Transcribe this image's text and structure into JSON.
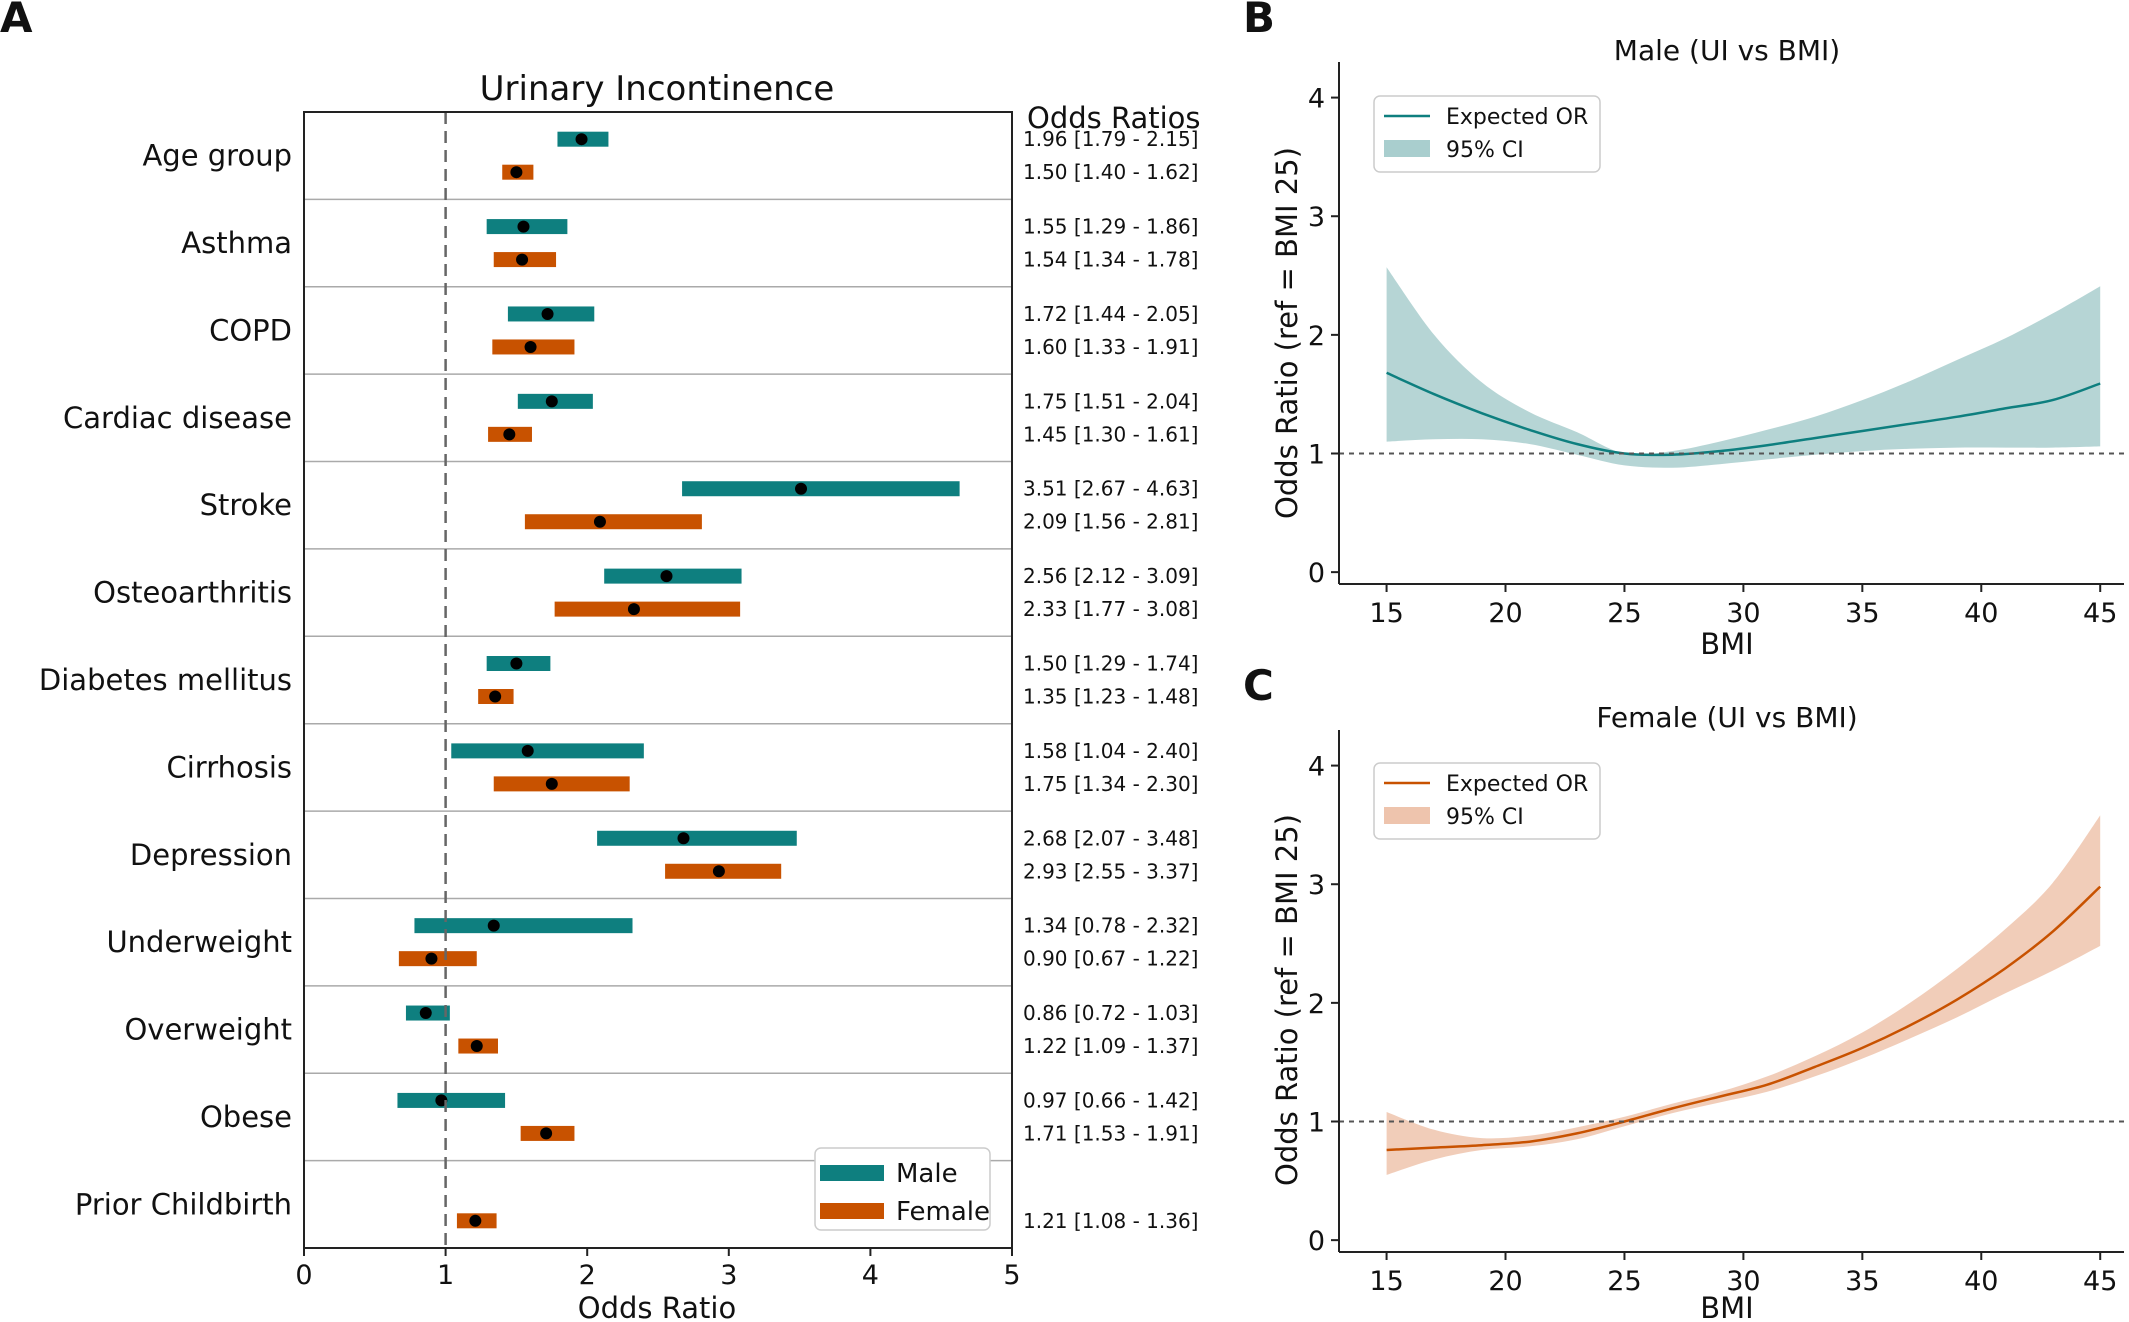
{
  "colors": {
    "male": "#0e7f7f",
    "female": "#c85200",
    "male_band": "#a9cece",
    "female_band": "#eec4ad",
    "point": "#000000"
  },
  "panels": {
    "a": "A",
    "b": "B",
    "c": "C"
  },
  "chart_data": [
    {
      "type": "forest",
      "title": "Urinary Incontinence",
      "xlabel": "Odds Ratio",
      "or_header": "Odds Ratios",
      "xlim": [
        0,
        5
      ],
      "xticks": [
        "0",
        "1",
        "2",
        "3",
        "4",
        "5"
      ],
      "reference_line": 1,
      "legend": {
        "male": "Male",
        "female": "Female",
        "placement": "bottom-right"
      },
      "rows": [
        {
          "label": "Age group",
          "male": {
            "or": 1.96,
            "lo": 1.79,
            "hi": 2.15,
            "text": "1.96 [1.79 - 2.15]"
          },
          "female": {
            "or": 1.5,
            "lo": 1.4,
            "hi": 1.62,
            "text": "1.50 [1.40 - 1.62]"
          }
        },
        {
          "label": "Asthma",
          "male": {
            "or": 1.55,
            "lo": 1.29,
            "hi": 1.86,
            "text": "1.55 [1.29 - 1.86]"
          },
          "female": {
            "or": 1.54,
            "lo": 1.34,
            "hi": 1.78,
            "text": "1.54 [1.34 - 1.78]"
          }
        },
        {
          "label": "COPD",
          "male": {
            "or": 1.72,
            "lo": 1.44,
            "hi": 2.05,
            "text": "1.72 [1.44 - 2.05]"
          },
          "female": {
            "or": 1.6,
            "lo": 1.33,
            "hi": 1.91,
            "text": "1.60 [1.33 - 1.91]"
          }
        },
        {
          "label": "Cardiac disease",
          "male": {
            "or": 1.75,
            "lo": 1.51,
            "hi": 2.04,
            "text": "1.75 [1.51 - 2.04]"
          },
          "female": {
            "or": 1.45,
            "lo": 1.3,
            "hi": 1.61,
            "text": "1.45 [1.30 - 1.61]"
          }
        },
        {
          "label": "Stroke",
          "male": {
            "or": 3.51,
            "lo": 2.67,
            "hi": 4.63,
            "text": "3.51 [2.67 - 4.63]"
          },
          "female": {
            "or": 2.09,
            "lo": 1.56,
            "hi": 2.81,
            "text": "2.09 [1.56 - 2.81]"
          }
        },
        {
          "label": "Osteoarthritis",
          "male": {
            "or": 2.56,
            "lo": 2.12,
            "hi": 3.09,
            "text": "2.56 [2.12 - 3.09]"
          },
          "female": {
            "or": 2.33,
            "lo": 1.77,
            "hi": 3.08,
            "text": "2.33 [1.77 - 3.08]"
          }
        },
        {
          "label": "Diabetes mellitus",
          "male": {
            "or": 1.5,
            "lo": 1.29,
            "hi": 1.74,
            "text": "1.50 [1.29 - 1.74]"
          },
          "female": {
            "or": 1.35,
            "lo": 1.23,
            "hi": 1.48,
            "text": "1.35 [1.23 - 1.48]"
          }
        },
        {
          "label": "Cirrhosis",
          "male": {
            "or": 1.58,
            "lo": 1.04,
            "hi": 2.4,
            "text": "1.58 [1.04 - 2.40]"
          },
          "female": {
            "or": 1.75,
            "lo": 1.34,
            "hi": 2.3,
            "text": "1.75 [1.34 - 2.30]"
          }
        },
        {
          "label": "Depression",
          "male": {
            "or": 2.68,
            "lo": 2.07,
            "hi": 3.48,
            "text": "2.68 [2.07 - 3.48]"
          },
          "female": {
            "or": 2.93,
            "lo": 2.55,
            "hi": 3.37,
            "text": "2.93 [2.55 - 3.37]"
          }
        },
        {
          "label": "Underweight",
          "male": {
            "or": 1.34,
            "lo": 0.78,
            "hi": 2.32,
            "text": "1.34 [0.78 - 2.32]"
          },
          "female": {
            "or": 0.9,
            "lo": 0.67,
            "hi": 1.22,
            "text": "0.90 [0.67 - 1.22]"
          }
        },
        {
          "label": "Overweight",
          "male": {
            "or": 0.86,
            "lo": 0.72,
            "hi": 1.03,
            "text": "0.86 [0.72 - 1.03]"
          },
          "female": {
            "or": 1.22,
            "lo": 1.09,
            "hi": 1.37,
            "text": "1.22 [1.09 - 1.37]"
          }
        },
        {
          "label": "Obese",
          "male": {
            "or": 0.97,
            "lo": 0.66,
            "hi": 1.42,
            "text": "0.97 [0.66 - 1.42]"
          },
          "female": {
            "or": 1.71,
            "lo": 1.53,
            "hi": 1.91,
            "text": "1.71 [1.53 - 1.91]"
          }
        },
        {
          "label": "Prior Childbirth",
          "male": null,
          "female": {
            "or": 1.21,
            "lo": 1.08,
            "hi": 1.36,
            "text": "1.21 [1.08 - 1.36]"
          }
        }
      ]
    },
    {
      "type": "line",
      "title": "Male (UI vs BMI)",
      "xlabel": "BMI",
      "ylabel": "Odds Ratio (ref = BMI 25)",
      "xlim": [
        13,
        46
      ],
      "ylim": [
        -0.1,
        4.3
      ],
      "xticks": [
        "15",
        "20",
        "25",
        "30",
        "35",
        "40",
        "45"
      ],
      "yticks": [
        "0",
        "1",
        "2",
        "3",
        "4"
      ],
      "reference_line": 1,
      "legend": {
        "line": "Expected OR",
        "band": "95% CI",
        "placement": "top-left"
      },
      "x": [
        15,
        17,
        19,
        21,
        23,
        25,
        27,
        29,
        31,
        33,
        35,
        37,
        39,
        41,
        43,
        45
      ],
      "or": [
        1.68,
        1.5,
        1.34,
        1.2,
        1.08,
        1.0,
        0.99,
        1.02,
        1.07,
        1.13,
        1.19,
        1.25,
        1.31,
        1.38,
        1.45,
        1.59
      ],
      "lo": [
        1.1,
        1.12,
        1.12,
        1.08,
        0.99,
        0.9,
        0.88,
        0.91,
        0.95,
        0.99,
        1.02,
        1.04,
        1.05,
        1.05,
        1.05,
        1.06
      ],
      "hi": [
        2.57,
        2.0,
        1.6,
        1.35,
        1.18,
        1.0,
        1.02,
        1.1,
        1.2,
        1.31,
        1.45,
        1.61,
        1.79,
        1.97,
        2.18,
        2.41
      ]
    },
    {
      "type": "line",
      "title": "Female (UI vs BMI)",
      "xlabel": "BMI",
      "ylabel": "Odds Ratio (ref = BMI 25)",
      "xlim": [
        13,
        46
      ],
      "ylim": [
        -0.1,
        4.3
      ],
      "xticks": [
        "15",
        "20",
        "25",
        "30",
        "35",
        "40",
        "45"
      ],
      "yticks": [
        "0",
        "1",
        "2",
        "3",
        "4"
      ],
      "reference_line": 1,
      "legend": {
        "line": "Expected OR",
        "band": "95% CI",
        "placement": "top-left"
      },
      "x": [
        15,
        17,
        19,
        21,
        23,
        25,
        27,
        29,
        31,
        33,
        35,
        37,
        39,
        41,
        43,
        45
      ],
      "or": [
        0.76,
        0.78,
        0.8,
        0.83,
        0.9,
        1.0,
        1.11,
        1.21,
        1.31,
        1.46,
        1.62,
        1.81,
        2.03,
        2.29,
        2.6,
        2.98
      ],
      "lo": [
        0.55,
        0.68,
        0.76,
        0.79,
        0.85,
        0.96,
        1.07,
        1.16,
        1.25,
        1.38,
        1.53,
        1.7,
        1.88,
        2.08,
        2.27,
        2.48
      ],
      "hi": [
        1.08,
        0.93,
        0.86,
        0.88,
        0.95,
        1.04,
        1.15,
        1.25,
        1.38,
        1.55,
        1.75,
        2.0,
        2.29,
        2.62,
        3.01,
        3.58
      ]
    }
  ]
}
